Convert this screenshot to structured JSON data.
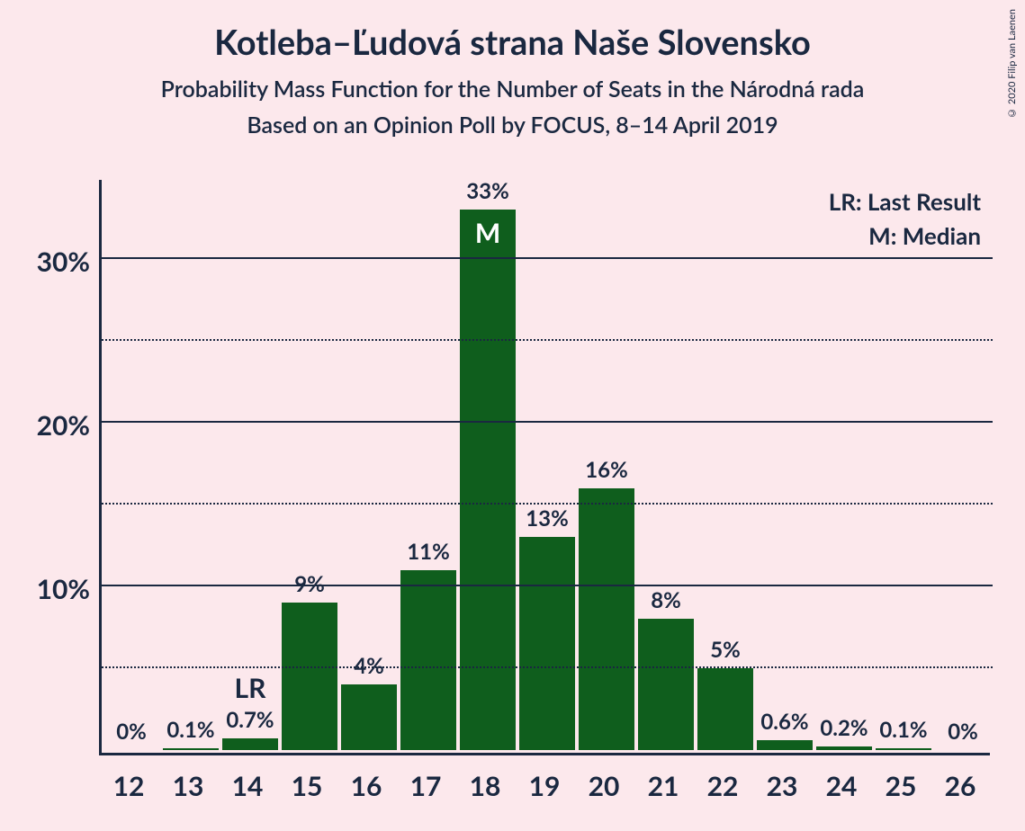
{
  "title": "Kotleba–Ľudová strana Naše Slovensko",
  "subtitle": "Probability Mass Function for the Number of Seats in the Národná rada",
  "subtitle2": "Based on an Opinion Poll by FOCUS, 8–14 April 2019",
  "copyright": "© 2020 Filip van Laenen",
  "legend": {
    "lr": "LR: Last Result",
    "m": "M: Median"
  },
  "chart": {
    "type": "bar",
    "background_color": "#fce8ec",
    "bar_color": "#0f5e1d",
    "text_color": "#1a2840",
    "ylim": [
      0,
      35
    ],
    "ymax_plot": 35,
    "y_ticks_major": [
      10,
      20,
      30
    ],
    "y_ticks_minor": [
      5,
      15,
      25
    ],
    "y_tick_labels": [
      "10%",
      "20%",
      "30%"
    ],
    "categories": [
      "12",
      "13",
      "14",
      "15",
      "16",
      "17",
      "18",
      "19",
      "20",
      "21",
      "22",
      "23",
      "24",
      "25",
      "26"
    ],
    "values": [
      0,
      0.1,
      0.7,
      9,
      4,
      11,
      33,
      13,
      16,
      8,
      5,
      0.6,
      0.2,
      0.1,
      0
    ],
    "value_labels": [
      "0%",
      "0.1%",
      "0.7%",
      "9%",
      "4%",
      "11%",
      "33%",
      "13%",
      "16%",
      "8%",
      "5%",
      "0.6%",
      "0.2%",
      "0.1%",
      "0%"
    ],
    "annotations": [
      {
        "index": 2,
        "text": "LR",
        "position": "above"
      },
      {
        "index": 6,
        "text": "M",
        "position": "inside"
      }
    ],
    "title_fontsize": 38,
    "subtitle_fontsize": 25,
    "axis_label_fontsize": 30,
    "bar_label_fontsize": 24
  }
}
